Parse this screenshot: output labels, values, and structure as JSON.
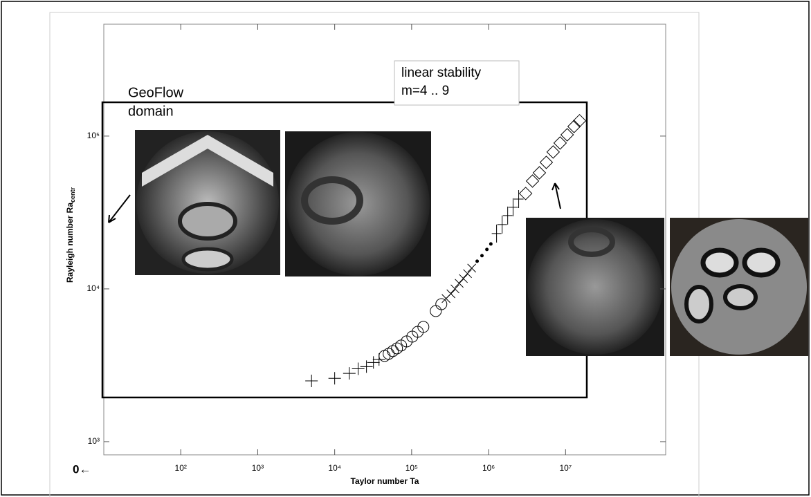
{
  "chart_data": {
    "type": "scatter",
    "xlabel": "Taylor number Ta",
    "ylabel": "Rayleigh number Ra",
    "ylabel_sub": "centr",
    "zero_label": "0←",
    "annotations": [
      "GeoFlow",
      "domain"
    ],
    "stability_box": [
      "linear stability",
      "m=4 .. 9"
    ],
    "xscale": "log",
    "yscale": "log",
    "xlim": [
      10,
      200000000
    ],
    "ylim": [
      820,
      540000
    ],
    "xticks": [
      {
        "value": 100,
        "label": "10²"
      },
      {
        "value": 1000,
        "label": "10³"
      },
      {
        "value": 10000,
        "label": "10⁴"
      },
      {
        "value": 100000,
        "label": "10⁵"
      },
      {
        "value": 1000000,
        "label": "10⁶"
      },
      {
        "value": 10000000,
        "label": "10⁷"
      }
    ],
    "yticks": [
      {
        "value": 1000,
        "label": "10³"
      },
      {
        "value": 10000,
        "label": "10⁴"
      },
      {
        "value": 100000,
        "label": "10⁵"
      }
    ],
    "color": "#000000",
    "series": [
      {
        "marker": "plus",
        "x": [
          5000,
          10000,
          15500,
          20200,
          25900,
          31900,
          37700
        ],
        "values": [
          2500,
          2600,
          2800,
          3000,
          3100,
          3300,
          3450
        ]
      },
      {
        "marker": "circle",
        "x": [
          44500,
          50300,
          57000,
          64500,
          73000,
          86100,
          102000,
          120000,
          142000,
          206000,
          243000
        ],
        "values": [
          3640,
          3760,
          3920,
          4080,
          4260,
          4530,
          4870,
          5240,
          5640,
          7160,
          7940
        ]
      },
      {
        "marker": "cross",
        "x": [
          280000,
          324000,
          366000,
          415000,
          470000,
          532000,
          603000
        ],
        "values": [
          8650,
          9290,
          10000,
          10870,
          11690,
          12590,
          13680
        ]
      },
      {
        "marker": "dot",
        "x": [
          710000,
          820000,
          950000,
          1070000
        ],
        "values": [
          15170,
          16490,
          18110,
          19680
        ]
      },
      {
        "marker": "tallplus",
        "x": [
          1270000,
          1500000,
          1770000,
          2080000,
          2460000
        ],
        "values": [
          23010,
          26360,
          30190,
          34200,
          38730
        ]
      },
      {
        "marker": "diamond",
        "x": [
          3030000,
          3720000,
          4570000,
          5620000,
          6900000,
          8500000,
          10500000,
          12900000,
          15200000
        ],
        "values": [
          42100,
          50800,
          57500,
          67300,
          78700,
          90100,
          102000,
          115600,
          126000
        ]
      }
    ]
  }
}
